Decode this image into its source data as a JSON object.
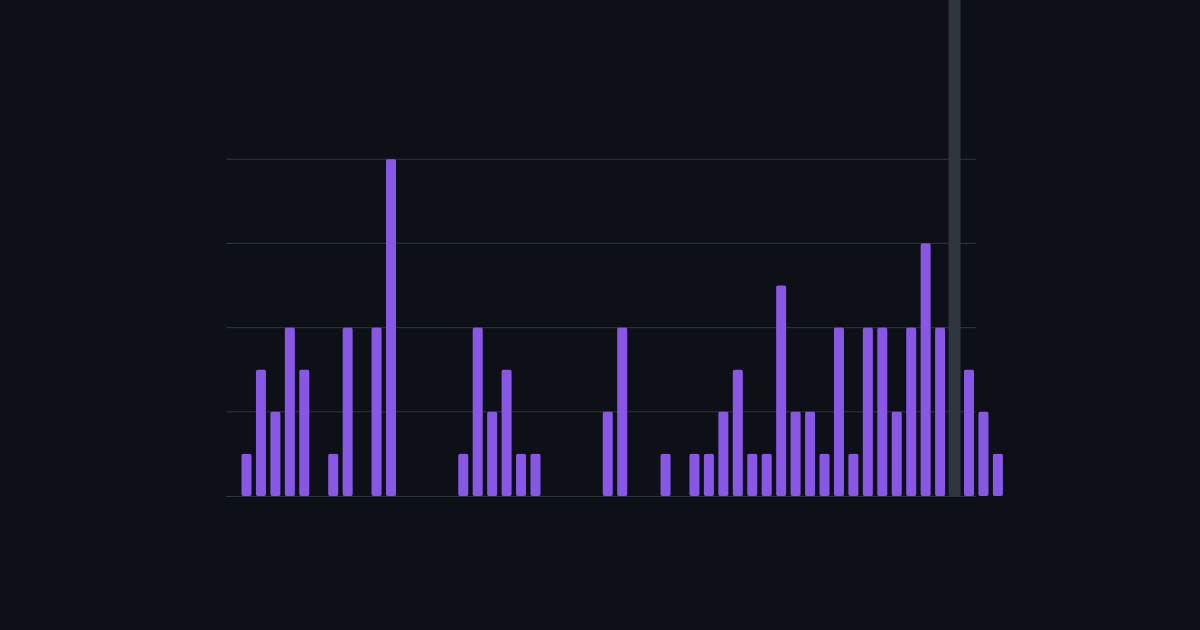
{
  "chart_data": {
    "type": "bar",
    "values": [
      1,
      3,
      2,
      4,
      3,
      0,
      1,
      4,
      0,
      4,
      8,
      0,
      0,
      0,
      0,
      1,
      4,
      2,
      3,
      1,
      1,
      0,
      0,
      0,
      0,
      2,
      4,
      0,
      0,
      1,
      0,
      1,
      1,
      2,
      3,
      1,
      1,
      5,
      2,
      2,
      1,
      4,
      1,
      4,
      4,
      2,
      4,
      6,
      4,
      0,
      3,
      2,
      1
    ],
    "ylim": [
      0,
      10
    ],
    "grid": true,
    "highlight_index": 49,
    "colors": {
      "background": "#0d1117",
      "bar": "#8957e5",
      "grid": "#30363d",
      "highlight": "#30363d",
      "axis": "#30363d"
    }
  }
}
